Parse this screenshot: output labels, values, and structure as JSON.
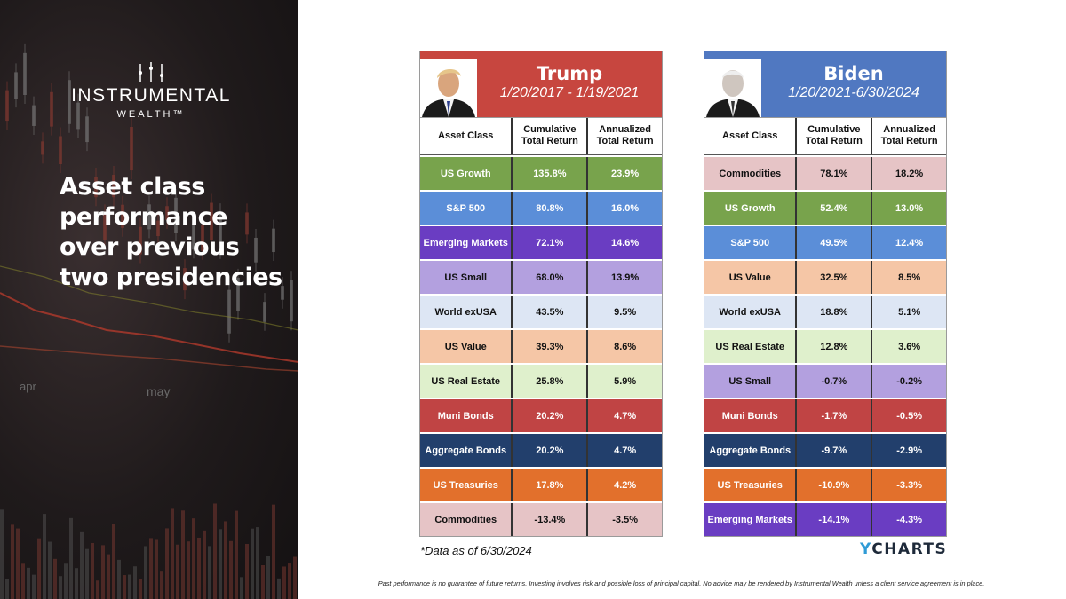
{
  "brand": {
    "name": "INSTRUMENTAL",
    "sub": "WEALTH™"
  },
  "headline": "Asset class performance over previous two presidencies",
  "chart_bg_labels": [
    "apr",
    "may"
  ],
  "columns": {
    "asset": "Asset Class",
    "cumulative": "Cumulative Total Return",
    "annualized": "Annualized Total Return"
  },
  "trump": {
    "name": "Trump",
    "dates": "1/20/2017 - 1/19/2021",
    "header_color": "#c7463f",
    "rows": [
      {
        "asset": "US Growth",
        "cumulative": "135.8%",
        "annualized": "23.9%",
        "color": "#78a34c",
        "text": "#ffffff"
      },
      {
        "asset": "S&P 500",
        "cumulative": "80.8%",
        "annualized": "16.0%",
        "color": "#5b8ed8",
        "text": "#ffffff"
      },
      {
        "asset": "Emerging Markets",
        "cumulative": "72.1%",
        "annualized": "14.6%",
        "color": "#6a3dc2",
        "text": "#ffffff"
      },
      {
        "asset": "US Small",
        "cumulative": "68.0%",
        "annualized": "13.9%",
        "color": "#b3a0df",
        "text": "#111111"
      },
      {
        "asset": "World exUSA",
        "cumulative": "43.5%",
        "annualized": "9.5%",
        "color": "#dde6f4",
        "text": "#111111"
      },
      {
        "asset": "US Value",
        "cumulative": "39.3%",
        "annualized": "8.6%",
        "color": "#f5c6a6",
        "text": "#111111"
      },
      {
        "asset": "US Real Estate",
        "cumulative": "25.8%",
        "annualized": "5.9%",
        "color": "#dff0cc",
        "text": "#111111"
      },
      {
        "asset": "Muni Bonds",
        "cumulative": "20.2%",
        "annualized": "4.7%",
        "color": "#c04444",
        "text": "#ffffff"
      },
      {
        "asset": "Aggregate Bonds",
        "cumulative": "20.2%",
        "annualized": "4.7%",
        "color": "#223f6c",
        "text": "#ffffff"
      },
      {
        "asset": "US Treasuries",
        "cumulative": "17.8%",
        "annualized": "4.2%",
        "color": "#e2702c",
        "text": "#ffffff"
      },
      {
        "asset": "Commodities",
        "cumulative": "-13.4%",
        "annualized": "-3.5%",
        "color": "#e6c4c6",
        "text": "#111111"
      }
    ]
  },
  "biden": {
    "name": "Biden",
    "dates": "1/20/2021-6/30/2024",
    "header_color": "#5078c1",
    "rows": [
      {
        "asset": "Commodities",
        "cumulative": "78.1%",
        "annualized": "18.2%",
        "color": "#e6c4c6",
        "text": "#111111"
      },
      {
        "asset": "US Growth",
        "cumulative": "52.4%",
        "annualized": "13.0%",
        "color": "#78a34c",
        "text": "#ffffff"
      },
      {
        "asset": "S&P 500",
        "cumulative": "49.5%",
        "annualized": "12.4%",
        "color": "#5b8ed8",
        "text": "#ffffff"
      },
      {
        "asset": "US Value",
        "cumulative": "32.5%",
        "annualized": "8.5%",
        "color": "#f5c6a6",
        "text": "#111111"
      },
      {
        "asset": "World exUSA",
        "cumulative": "18.8%",
        "annualized": "5.1%",
        "color": "#dde6f4",
        "text": "#111111"
      },
      {
        "asset": "US Real Estate",
        "cumulative": "12.8%",
        "annualized": "3.6%",
        "color": "#dff0cc",
        "text": "#111111"
      },
      {
        "asset": "US Small",
        "cumulative": "-0.7%",
        "annualized": "-0.2%",
        "color": "#b3a0df",
        "text": "#111111"
      },
      {
        "asset": "Muni Bonds",
        "cumulative": "-1.7%",
        "annualized": "-0.5%",
        "color": "#c04444",
        "text": "#ffffff"
      },
      {
        "asset": "Aggregate Bonds",
        "cumulative": "-9.7%",
        "annualized": "-2.9%",
        "color": "#223f6c",
        "text": "#ffffff"
      },
      {
        "asset": "US Treasuries",
        "cumulative": "-10.9%",
        "annualized": "-3.3%",
        "color": "#e2702c",
        "text": "#ffffff"
      },
      {
        "asset": "Emerging Markets",
        "cumulative": "-14.1%",
        "annualized": "-4.3%",
        "color": "#6a3dc2",
        "text": "#ffffff"
      }
    ]
  },
  "footnote": "*Data as of 6/30/2024",
  "source": {
    "y": "Y",
    "rest": "CHARTS"
  },
  "disclaimer": "Past performance is no guarantee of future returns. Investing involves risk and possible loss of principal capital. No advice may be rendered by Instrumental Wealth unless a client service agreement is in place."
}
